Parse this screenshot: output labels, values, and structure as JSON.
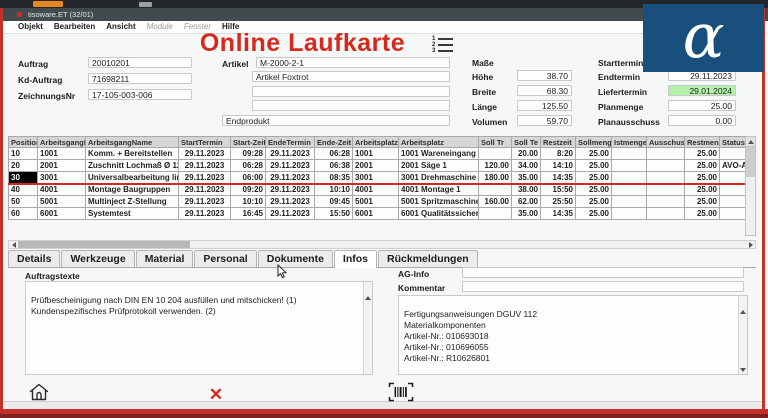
{
  "window": {
    "title": "tisoware.ET (32/01)"
  },
  "menu": {
    "items": [
      {
        "label": "Objekt",
        "enabled": true
      },
      {
        "label": "Bearbeiten",
        "enabled": true
      },
      {
        "label": "Ansicht",
        "enabled": true
      },
      {
        "label": "Module",
        "enabled": false
      },
      {
        "label": "Fenster",
        "enabled": false
      },
      {
        "label": "Hilfe",
        "enabled": true
      }
    ]
  },
  "header": {
    "title": "Online Laufkarte",
    "list_numbers": [
      "1",
      "2",
      "3"
    ]
  },
  "form": {
    "left": [
      {
        "label": "Auftrag",
        "value": "20010201"
      },
      {
        "label": "Kd-Auftrag",
        "value": "71698211"
      },
      {
        "label": "ZeichnungsNr",
        "value": "17-105-003-006"
      }
    ],
    "artikel": {
      "label": "Artikel",
      "nr": "M-2000-2-1",
      "name": "Artikel Foxtrot",
      "extra1": "",
      "extra2": "",
      "endprodukt": "Endprodukt"
    },
    "masse": {
      "label": "Maße",
      "fields": [
        {
          "label": "Höhe",
          "value": "38.70"
        },
        {
          "label": "Breite",
          "value": "68.30"
        },
        {
          "label": "Länge",
          "value": "125.50"
        },
        {
          "label": "Volumen",
          "value": "59.70"
        }
      ]
    },
    "termine": {
      "fields": [
        {
          "label": "Starttermin",
          "value": ""
        },
        {
          "label": "Endtermin",
          "value": "29.11.2023"
        },
        {
          "label": "Liefertermin",
          "value": "29.01.2024",
          "highlight": true
        },
        {
          "label": "Planmenge",
          "value": "25.00"
        },
        {
          "label": "Planausschuss",
          "value": "0.00"
        }
      ]
    }
  },
  "table": {
    "headers": [
      "Position",
      "ArbeitsgangNr",
      "ArbeitsgangName",
      "StartTermin",
      "Start-Zeit",
      "EndeTermin",
      "Ende-Zeit",
      "ArbeitsplatzNr",
      "Arbeitsplatz",
      "Soll Tr",
      "Soll Te",
      "Restzeit",
      "Sollmenge",
      "Istmenge",
      "Ausschuss",
      "Restmenge",
      "Status"
    ],
    "rows": [
      {
        "position": "10",
        "agnr": "1001",
        "agname": "Komm. + Bereitstellen",
        "starttermin": "29.11.2023",
        "startzeit": "09:28",
        "endetermin": "29.11.2023",
        "endezeit": "06:28",
        "platznr": "1001",
        "platz": "1001 Wareneingang",
        "solltr": "",
        "sollte": "20.00",
        "restzeit": "8:20",
        "sollmenge": "25.00",
        "istmenge": "",
        "ausschuss": "",
        "restmenge": "25.00",
        "status": "",
        "selected": false
      },
      {
        "position": "20",
        "agnr": "2001",
        "agname": "Zuschnitt Lochmaß Ø 120mm",
        "starttermin": "29.11.2023",
        "startzeit": "06:28",
        "endetermin": "29.11.2023",
        "endezeit": "06:38",
        "platznr": "2001",
        "platz": "2001 Säge 1",
        "solltr": "120.00",
        "sollte": "34.00",
        "restzeit": "14:10",
        "sollmenge": "25.00",
        "istmenge": "",
        "ausschuss": "",
        "restmenge": "25.00",
        "status": "AVO-A",
        "selected": false
      },
      {
        "position": "30",
        "agnr": "3001",
        "agname": "Universalbearbeitung linear",
        "starttermin": "29.11.2023",
        "startzeit": "06:00",
        "endetermin": "29.11.2023",
        "endezeit": "08:35",
        "platznr": "3001",
        "platz": "3001 Drehmaschine 1",
        "solltr": "180.00",
        "sollte": "35.00",
        "restzeit": "14:35",
        "sollmenge": "25.00",
        "istmenge": "",
        "ausschuss": "",
        "restmenge": "25.00",
        "status": "",
        "selected": true
      },
      {
        "position": "40",
        "agnr": "4001",
        "agname": "Montage Baugruppen",
        "starttermin": "29.11.2023",
        "startzeit": "09:20",
        "endetermin": "29.11.2023",
        "endezeit": "10:10",
        "platznr": "4001",
        "platz": "4001 Montage 1",
        "solltr": "",
        "sollte": "38.00",
        "restzeit": "15:50",
        "sollmenge": "25.00",
        "istmenge": "",
        "ausschuss": "",
        "restmenge": "25.00",
        "status": "",
        "selected": false
      },
      {
        "position": "50",
        "agnr": "5001",
        "agname": "Multinject Z-Stellung",
        "starttermin": "29.11.2023",
        "startzeit": "10:10",
        "endetermin": "29.11.2023",
        "endezeit": "09:45",
        "platznr": "5001",
        "platz": "5001 Spritzmaschine",
        "solltr": "160.00",
        "sollte": "62.00",
        "restzeit": "25:50",
        "sollmenge": "25.00",
        "istmenge": "",
        "ausschuss": "",
        "restmenge": "25.00",
        "status": "",
        "selected": false
      },
      {
        "position": "60",
        "agnr": "6001",
        "agname": "Systemtest",
        "starttermin": "29.11.2023",
        "startzeit": "16:45",
        "endetermin": "29.11.2023",
        "endezeit": "15:50",
        "platznr": "6001",
        "platz": "6001 Qualitätssicherung",
        "solltr": "",
        "sollte": "35.00",
        "restzeit": "14:35",
        "sollmenge": "25.00",
        "istmenge": "",
        "ausschuss": "",
        "restmenge": "25.00",
        "status": "",
        "selected": false
      }
    ]
  },
  "tabs": {
    "items": [
      "Details",
      "Werkzeuge",
      "Material",
      "Personal",
      "Dokumente",
      "Infos",
      "Rückmeldungen"
    ],
    "active": "Infos"
  },
  "info_panel": {
    "auftragstexte_label": "Auftragstexte",
    "auftragstexte_text": "Prüfbescheinigung nach DIN EN 10 204 ausfüllen und mitschicken! (1)\nKundenspezifisches Prüfprotokoll verwenden. (2)",
    "ag_info_label": "AG-Info",
    "ag_info_value": "",
    "kommentar_label": "Kommentar",
    "kommentar_value": "",
    "kommentar_text": "Fertigungsanweisungen DGUV 112\nMaterialkomponenten\nArtikel-Nr.: 010693018\nArtikel-Nr.: 010696055\nArtikel-Nr.: R10626801"
  },
  "toolbar": {
    "cancel_glyph": "✕"
  },
  "watermark": {
    "letter": "α"
  },
  "colors": {
    "title_red": "#d42a1e",
    "frame_red": "#c2312b",
    "row_green": "#2fd32f",
    "row_yellow": "#ffff00",
    "cell_red": "#e11b00",
    "cell_pink": "#eda49c",
    "cell_gray": "#b9b9b9",
    "liefertermin_green": "#b5f0a8",
    "watermark_blue": "#184f7c"
  }
}
